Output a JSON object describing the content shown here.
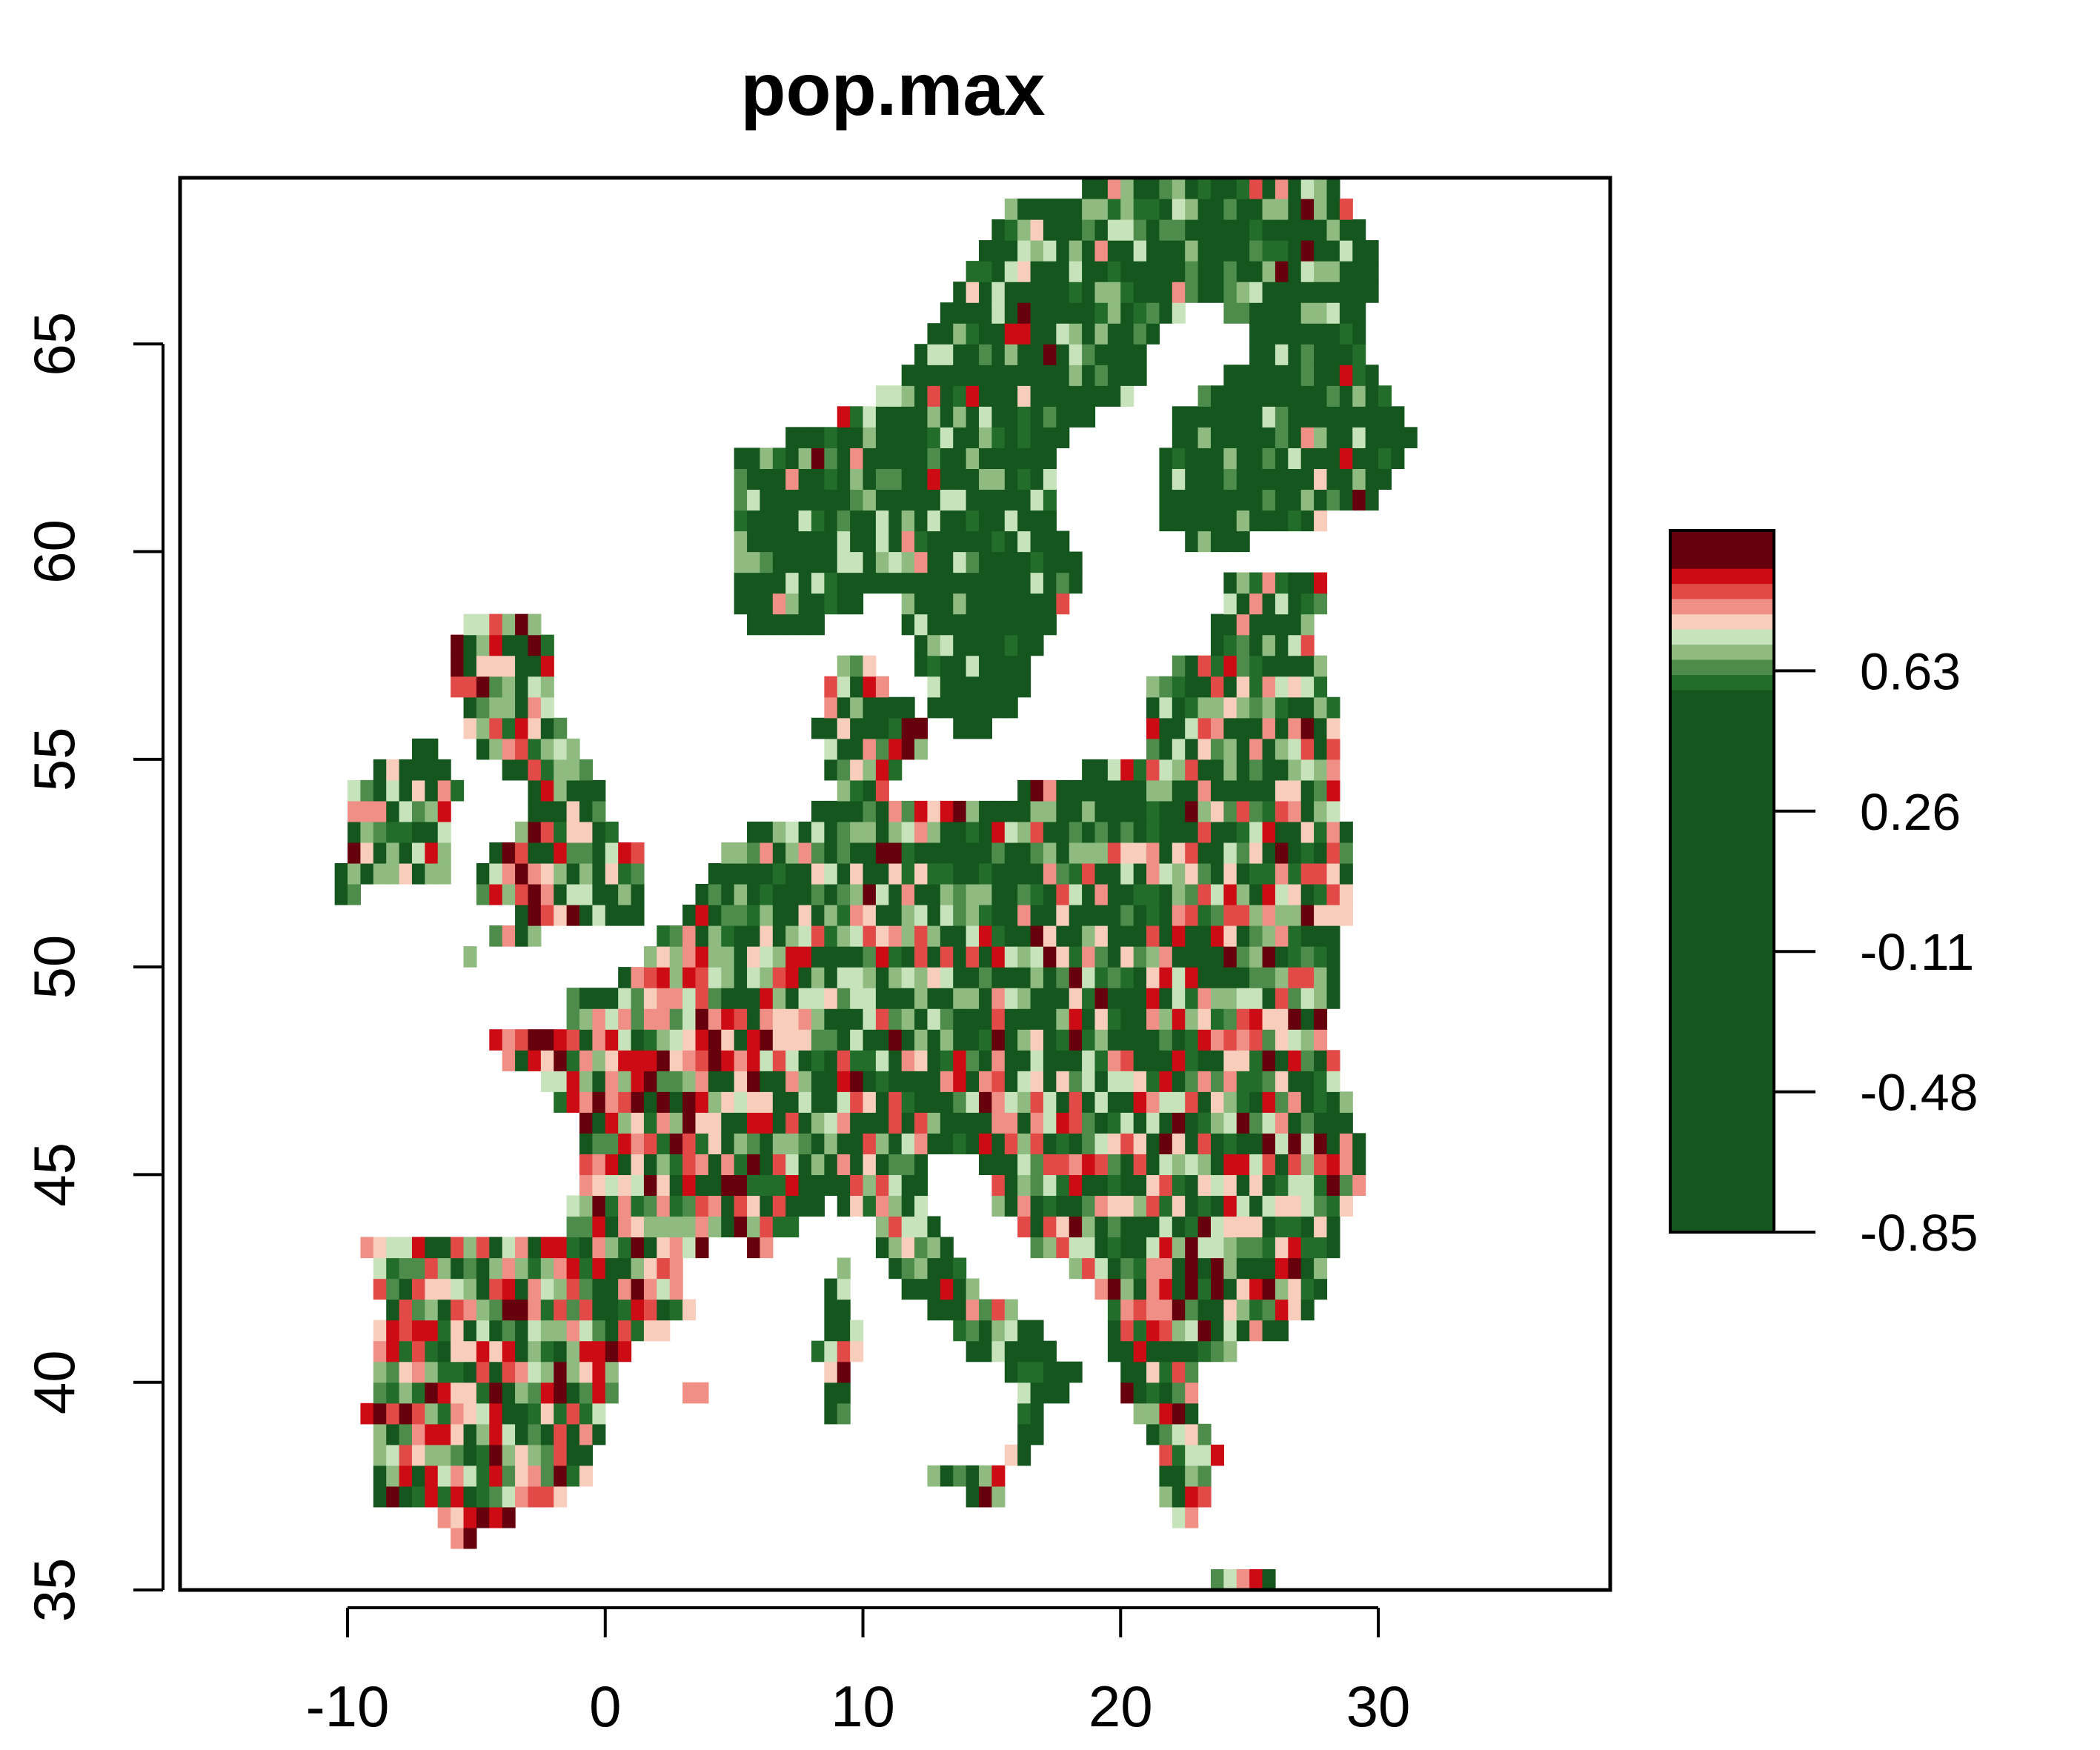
{
  "chart_data": {
    "type": "heatmap",
    "title": "pop.max",
    "xlabel": "",
    "ylabel": "",
    "xlim": [
      -16.5,
      39
    ],
    "ylim": [
      35,
      69
    ],
    "x_ticks": [
      -10,
      0,
      10,
      20,
      30
    ],
    "x_tick_labels": [
      "-10",
      "0",
      "10",
      "20",
      "30"
    ],
    "y_ticks": [
      35,
      40,
      45,
      50,
      55,
      60,
      65
    ],
    "y_tick_labels": [
      "35",
      "40",
      "45",
      "50",
      "55",
      "60",
      "65"
    ],
    "grid": false,
    "colorbar": {
      "placement": "right",
      "range": [
        -0.85,
        1.0
      ],
      "ticks": [
        -0.85,
        -0.48,
        -0.11,
        0.26,
        0.63
      ],
      "tick_labels": [
        "-0.85",
        "-0.48",
        "-0.11",
        "0.26",
        "0.63"
      ],
      "bands": [
        {
          "from": -0.85,
          "to": 0.58,
          "color": "#15561f"
        },
        {
          "from": 0.58,
          "to": 0.62,
          "color": "#236d2b"
        },
        {
          "from": 0.62,
          "to": 0.66,
          "color": "#4d8c4a"
        },
        {
          "from": 0.66,
          "to": 0.7,
          "color": "#8fbb80"
        },
        {
          "from": 0.7,
          "to": 0.74,
          "color": "#c7e3bb"
        },
        {
          "from": 0.74,
          "to": 0.78,
          "color": "#f8cdbb"
        },
        {
          "from": 0.78,
          "to": 0.82,
          "color": "#ef8f85"
        },
        {
          "from": 0.82,
          "to": 0.86,
          "color": "#e24a48"
        },
        {
          "from": 0.86,
          "to": 0.9,
          "color": "#cc0b14"
        },
        {
          "from": 0.9,
          "to": 1.0,
          "color": "#67000d"
        }
      ]
    },
    "palette": [
      "#15561f",
      "#236d2b",
      "#4d8c4a",
      "#8fbb80",
      "#c7e3bb",
      "#f8cdbb",
      "#ef8f85",
      "#e24a48",
      "#cc0b14",
      "#67000d"
    ],
    "cell_size_degrees": 0.5,
    "region_note": "Europe land area raster; values vary cell by cell",
    "land_regions": [
      {
        "name": "Iberia",
        "polygon": [
          [
            -9.3,
            43.7
          ],
          [
            -1.8,
            43.4
          ],
          [
            3.2,
            42.4
          ],
          [
            3.3,
            41.6
          ],
          [
            0.9,
            40.7
          ],
          [
            0.2,
            39.3
          ],
          [
            -0.3,
            38.4
          ],
          [
            -0.9,
            37.5
          ],
          [
            -2.2,
            36.8
          ],
          [
            -4.4,
            36.7
          ],
          [
            -5.6,
            36.0
          ],
          [
            -6.5,
            36.9
          ],
          [
            -7.4,
            37.2
          ],
          [
            -8.9,
            37.0
          ],
          [
            -8.8,
            38.7
          ],
          [
            -9.5,
            38.9
          ],
          [
            -8.8,
            40.5
          ],
          [
            -8.7,
            42.0
          ],
          [
            -9.3,
            42.9
          ]
        ]
      },
      {
        "name": "France",
        "polygon": [
          [
            -4.8,
            48.4
          ],
          [
            -1.8,
            48.6
          ],
          [
            -1.4,
            49.6
          ],
          [
            0.2,
            49.7
          ],
          [
            1.6,
            50.2
          ],
          [
            2.5,
            51.1
          ],
          [
            4.2,
            50.0
          ],
          [
            6.2,
            49.5
          ],
          [
            8.2,
            49.0
          ],
          [
            7.6,
            47.6
          ],
          [
            6.1,
            46.4
          ],
          [
            7.0,
            45.9
          ],
          [
            7.0,
            44.2
          ],
          [
            7.5,
            43.8
          ],
          [
            6.2,
            43.1
          ],
          [
            4.6,
            43.4
          ],
          [
            3.1,
            43.1
          ],
          [
            3.1,
            42.4
          ],
          [
            1.4,
            42.6
          ],
          [
            -1.8,
            43.4
          ],
          [
            -1.2,
            44.6
          ],
          [
            -1.1,
            46.2
          ],
          [
            -2.2,
            47.1
          ],
          [
            -4.6,
            47.9
          ]
        ]
      },
      {
        "name": "Benelux+Germany+Poland+Baltic",
        "polygon": [
          [
            2.5,
            51.1
          ],
          [
            3.6,
            51.6
          ],
          [
            4.7,
            53.0
          ],
          [
            7.2,
            53.6
          ],
          [
            8.8,
            54.0
          ],
          [
            8.6,
            55.6
          ],
          [
            10.0,
            57.6
          ],
          [
            12.3,
            56.0
          ],
          [
            11.0,
            54.0
          ],
          [
            14.2,
            53.9
          ],
          [
            18.5,
            54.8
          ],
          [
            21.0,
            55.3
          ],
          [
            21.2,
            57.0
          ],
          [
            23.5,
            57.8
          ],
          [
            24.3,
            59.4
          ],
          [
            28.0,
            59.5
          ],
          [
            27.5,
            57.5
          ],
          [
            28.2,
            56.0
          ],
          [
            26.6,
            55.2
          ],
          [
            23.5,
            53.9
          ],
          [
            24.0,
            52.0
          ],
          [
            23.3,
            50.3
          ],
          [
            22.6,
            49.1
          ],
          [
            18.8,
            49.5
          ],
          [
            16.9,
            48.6
          ],
          [
            13.8,
            48.7
          ],
          [
            12.1,
            47.7
          ],
          [
            9.6,
            47.5
          ],
          [
            7.6,
            47.6
          ],
          [
            8.2,
            49.0
          ],
          [
            6.2,
            49.5
          ],
          [
            4.2,
            50.0
          ]
        ]
      },
      {
        "name": "Alps+Italy",
        "polygon": [
          [
            6.1,
            46.4
          ],
          [
            7.6,
            47.6
          ],
          [
            9.6,
            47.5
          ],
          [
            12.1,
            47.7
          ],
          [
            13.8,
            48.7
          ],
          [
            16.9,
            48.6
          ],
          [
            16.5,
            47.0
          ],
          [
            13.7,
            45.6
          ],
          [
            12.3,
            45.4
          ],
          [
            12.4,
            44.2
          ],
          [
            13.6,
            43.5
          ],
          [
            14.0,
            42.5
          ],
          [
            16.2,
            41.7
          ],
          [
            18.5,
            40.2
          ],
          [
            17.0,
            39.1
          ],
          [
            16.6,
            38.0
          ],
          [
            15.6,
            38.0
          ],
          [
            16.0,
            39.4
          ],
          [
            15.6,
            40.1
          ],
          [
            14.0,
            40.8
          ],
          [
            12.4,
            41.8
          ],
          [
            11.1,
            42.5
          ],
          [
            10.2,
            43.9
          ],
          [
            8.7,
            44.4
          ],
          [
            7.5,
            43.8
          ],
          [
            7.0,
            44.2
          ],
          [
            7.0,
            45.9
          ]
        ]
      },
      {
        "name": "Balkans+Hungary+Romania",
        "polygon": [
          [
            16.9,
            48.6
          ],
          [
            18.8,
            49.5
          ],
          [
            22.6,
            49.1
          ],
          [
            23.3,
            50.3
          ],
          [
            24.0,
            52.0
          ],
          [
            23.5,
            53.9
          ],
          [
            26.6,
            55.2
          ],
          [
            28.2,
            56.0
          ],
          [
            27.5,
            57.5
          ],
          [
            28.2,
            57.0
          ],
          [
            29.0,
            52.0
          ],
          [
            28.0,
            48.3
          ],
          [
            29.6,
            45.3
          ],
          [
            28.6,
            43.7
          ],
          [
            27.9,
            42.0
          ],
          [
            26.0,
            41.0
          ],
          [
            24.0,
            40.7
          ],
          [
            22.6,
            40.0
          ],
          [
            24.0,
            38.2
          ],
          [
            23.0,
            36.5
          ],
          [
            21.7,
            36.9
          ],
          [
            21.2,
            38.5
          ],
          [
            20.0,
            39.6
          ],
          [
            19.4,
            41.9
          ],
          [
            18.4,
            42.6
          ],
          [
            17.0,
            43.0
          ],
          [
            15.2,
            44.2
          ],
          [
            14.5,
            45.3
          ],
          [
            13.7,
            45.6
          ],
          [
            16.5,
            47.0
          ]
        ]
      },
      {
        "name": "Great Britain",
        "polygon": [
          [
            -5.7,
            50.1
          ],
          [
            -3.0,
            50.7
          ],
          [
            1.4,
            51.2
          ],
          [
            1.7,
            52.7
          ],
          [
            0.3,
            53.4
          ],
          [
            -0.1,
            54.5
          ],
          [
            -1.6,
            55.6
          ],
          [
            -2.1,
            56.9
          ],
          [
            -1.8,
            57.6
          ],
          [
            -3.0,
            58.6
          ],
          [
            -5.0,
            58.6
          ],
          [
            -6.2,
            57.5
          ],
          [
            -5.6,
            56.3
          ],
          [
            -4.9,
            55.0
          ],
          [
            -3.0,
            54.3
          ],
          [
            -3.4,
            53.4
          ],
          [
            -4.7,
            52.8
          ],
          [
            -5.2,
            51.7
          ],
          [
            -3.3,
            51.5
          ]
        ]
      },
      {
        "name": "Ireland",
        "polygon": [
          [
            -10.3,
            51.6
          ],
          [
            -6.2,
            52.2
          ],
          [
            -6.0,
            53.4
          ],
          [
            -5.6,
            54.6
          ],
          [
            -6.5,
            55.3
          ],
          [
            -8.4,
            55.2
          ],
          [
            -10.0,
            54.2
          ],
          [
            -9.9,
            53.3
          ],
          [
            -10.4,
            52.1
          ]
        ]
      },
      {
        "name": "Scandinavia",
        "polygon": [
          [
            5.0,
            58.5
          ],
          [
            6.0,
            58.0
          ],
          [
            8.3,
            58.1
          ],
          [
            10.5,
            59.0
          ],
          [
            11.4,
            58.9
          ],
          [
            12.5,
            56.2
          ],
          [
            14.2,
            55.4
          ],
          [
            16.0,
            56.1
          ],
          [
            16.6,
            57.5
          ],
          [
            18.7,
            59.4
          ],
          [
            17.5,
            61.0
          ],
          [
            17.7,
            62.6
          ],
          [
            20.8,
            63.9
          ],
          [
            21.5,
            65.6
          ],
          [
            24.0,
            65.9
          ],
          [
            25.4,
            65.0
          ],
          [
            22.0,
            63.2
          ],
          [
            21.3,
            60.8
          ],
          [
            22.9,
            59.9
          ],
          [
            26.8,
            60.5
          ],
          [
            30.0,
            61.3
          ],
          [
            31.5,
            62.9
          ],
          [
            29.6,
            64.9
          ],
          [
            29.9,
            67.5
          ],
          [
            28.5,
            69.0
          ],
          [
            25.0,
            69.5
          ],
          [
            20.6,
            69.0
          ],
          [
            16.0,
            68.5
          ],
          [
            14.5,
            67.0
          ],
          [
            12.5,
            65.0
          ],
          [
            10.3,
            63.5
          ],
          [
            5.2,
            62.4
          ]
        ]
      },
      {
        "name": "Denmark",
        "polygon": [
          [
            8.1,
            55.5
          ],
          [
            8.6,
            57.1
          ],
          [
            10.6,
            57.7
          ],
          [
            10.9,
            56.4
          ],
          [
            12.6,
            56.0
          ],
          [
            12.3,
            55.0
          ],
          [
            10.0,
            54.8
          ],
          [
            8.6,
            54.9
          ]
        ]
      },
      {
        "name": "Sardinia+Corsica",
        "polygon": [
          [
            8.4,
            39.0
          ],
          [
            9.6,
            39.2
          ],
          [
            9.8,
            41.0
          ],
          [
            9.5,
            43.0
          ],
          [
            8.6,
            42.4
          ],
          [
            8.2,
            40.8
          ]
        ]
      },
      {
        "name": "Sicily",
        "polygon": [
          [
            12.4,
            37.8
          ],
          [
            15.1,
            38.2
          ],
          [
            15.6,
            37.9
          ],
          [
            15.1,
            36.7
          ],
          [
            13.0,
            37.6
          ]
        ]
      },
      {
        "name": "Crete",
        "polygon": [
          [
            23.5,
            35.3
          ],
          [
            26.3,
            35.3
          ],
          [
            25.5,
            35.0
          ],
          [
            24.0,
            35.1
          ]
        ]
      },
      {
        "name": "Balearics",
        "polygon": [
          [
            2.3,
            39.4
          ],
          [
            3.4,
            39.9
          ],
          [
            4.3,
            40.0
          ],
          [
            3.0,
            39.2
          ]
        ]
      }
    ]
  }
}
